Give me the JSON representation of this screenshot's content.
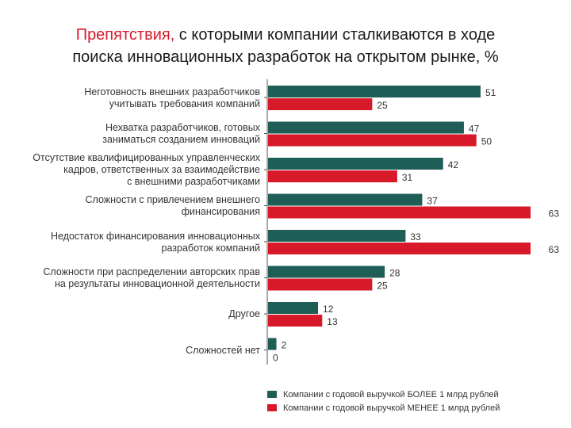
{
  "title": {
    "accent": "Препятствия,",
    "line1_rest": " с которыми компании сталкиваются в ходе",
    "line2": "поиска инновационных разработок на открытом рынке, %"
  },
  "colors": {
    "series_large": "#1f5e56",
    "series_small": "#d7192a",
    "axis": "#555555"
  },
  "chart_data": {
    "type": "bar",
    "orientation": "horizontal",
    "categories": [
      "Неготовность внешних разработчиков\nучитывать требования компаний",
      "Нехватка разработчиков, готовых\nзаниматься созданием инноваций",
      "Отсутствие квалифицированных управленческих\nкадров, ответственных за взаимодействие\nс внешними разработчиками",
      "Сложности с привлечением внешнего\nфинансирования",
      "Недостаток финансирования инновационных\nразработок компаний",
      "Сложности при распределении авторских прав\nна результаты инновационной деятельности",
      "Другое",
      "Сложностей нет"
    ],
    "series": [
      {
        "name": "Компании с годовой выручкой БОЛЕЕ 1 млрд рублей",
        "values": [
          51,
          47,
          42,
          37,
          33,
          28,
          12,
          2
        ]
      },
      {
        "name": "Компании с годовой выручкой МЕНЕЕ 1 млрд рублей",
        "values": [
          25,
          50,
          31,
          63,
          63,
          25,
          13,
          0
        ]
      }
    ],
    "xlim": [
      0,
      63
    ],
    "legend_position": "bottom",
    "grid": false
  }
}
